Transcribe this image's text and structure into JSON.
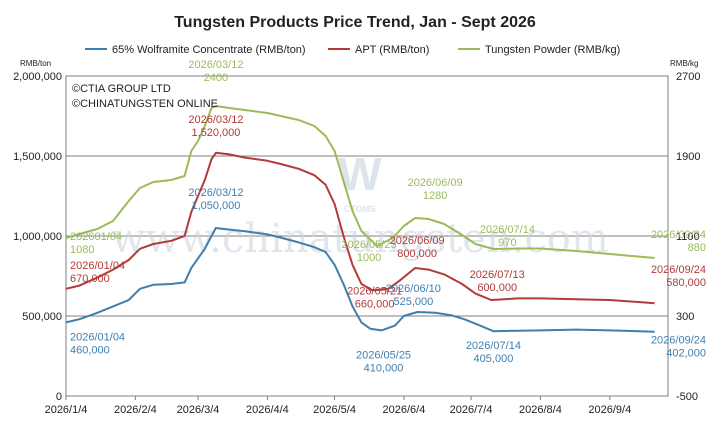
{
  "chart_data": {
    "type": "line",
    "title": "Tungsten Products Price Trend, Jan - Sept 2026",
    "y_left_unit": "RMB/ton",
    "y_right_unit": "RMB/kg",
    "y_left_range": [
      0,
      2000000
    ],
    "y_right_range": [
      -500,
      2700
    ],
    "y_left_ticks": [
      "0",
      "500,000",
      "1,000,000",
      "1,500,000",
      "2,000,000"
    ],
    "y_right_ticks": [
      "-500",
      "300",
      "1100",
      "1900",
      "2700"
    ],
    "x_range": [
      "2026-01-04",
      "2026-09-30"
    ],
    "x_ticks": [
      "2026/1/4",
      "2026/2/4",
      "2026/3/4",
      "2026/4/4",
      "2026/5/4",
      "2026/6/4",
      "2026/7/4",
      "2026/8/4",
      "2026/9/4"
    ],
    "x_tick_dates": [
      "2026-01-04",
      "2026-02-04",
      "2026-03-04",
      "2026-04-04",
      "2026-05-04",
      "2026-06-04",
      "2026-07-04",
      "2026-08-04",
      "2026-09-04"
    ],
    "grid": true,
    "legend_position": "top",
    "copyright": [
      "©CTIA GROUP LTD",
      "©CHINATUNGSTEN ONLINE"
    ],
    "watermark": "www.chinatungsten.com",
    "watermark_logo": "CTOMS",
    "series": [
      {
        "name": "65% Wolframite Concentrate (RMB/ton)",
        "axis": "left",
        "color": "#3f7fae",
        "points": [
          [
            "2026-01-04",
            460000
          ],
          [
            "2026-01-10",
            480000
          ],
          [
            "2026-01-18",
            520000
          ],
          [
            "2026-01-25",
            560000
          ],
          [
            "2026-02-01",
            600000
          ],
          [
            "2026-02-06",
            670000
          ],
          [
            "2026-02-12",
            695000
          ],
          [
            "2026-02-20",
            700000
          ],
          [
            "2026-02-26",
            710000
          ],
          [
            "2026-03-01",
            800000
          ],
          [
            "2026-03-04",
            860000
          ],
          [
            "2026-03-07",
            920000
          ],
          [
            "2026-03-10",
            1000000
          ],
          [
            "2026-03-12",
            1050000
          ],
          [
            "2026-03-18",
            1040000
          ],
          [
            "2026-03-25",
            1030000
          ],
          [
            "2026-04-04",
            1010000
          ],
          [
            "2026-04-10",
            990000
          ],
          [
            "2026-04-18",
            960000
          ],
          [
            "2026-04-25",
            930000
          ],
          [
            "2026-04-30",
            900000
          ],
          [
            "2026-05-04",
            820000
          ],
          [
            "2026-05-08",
            700000
          ],
          [
            "2026-05-12",
            560000
          ],
          [
            "2026-05-16",
            460000
          ],
          [
            "2026-05-20",
            420000
          ],
          [
            "2026-05-25",
            410000
          ],
          [
            "2026-05-31",
            440000
          ],
          [
            "2026-06-04",
            500000
          ],
          [
            "2026-06-10",
            525000
          ],
          [
            "2026-06-18",
            520000
          ],
          [
            "2026-06-25",
            505000
          ],
          [
            "2026-07-01",
            480000
          ],
          [
            "2026-07-08",
            440000
          ],
          [
            "2026-07-14",
            405000
          ],
          [
            "2026-07-25",
            408000
          ],
          [
            "2026-08-04",
            410000
          ],
          [
            "2026-08-20",
            415000
          ],
          [
            "2026-09-04",
            410000
          ],
          [
            "2026-09-24",
            402000
          ]
        ]
      },
      {
        "name": "APT (RMB/ton)",
        "axis": "left",
        "color": "#b23a37",
        "points": [
          [
            "2026-01-04",
            670000
          ],
          [
            "2026-01-10",
            690000
          ],
          [
            "2026-01-18",
            740000
          ],
          [
            "2026-01-25",
            790000
          ],
          [
            "2026-02-01",
            850000
          ],
          [
            "2026-02-06",
            920000
          ],
          [
            "2026-02-12",
            950000
          ],
          [
            "2026-02-20",
            970000
          ],
          [
            "2026-02-26",
            1000000
          ],
          [
            "2026-03-01",
            1150000
          ],
          [
            "2026-03-04",
            1250000
          ],
          [
            "2026-03-07",
            1350000
          ],
          [
            "2026-03-10",
            1480000
          ],
          [
            "2026-03-12",
            1520000
          ],
          [
            "2026-03-18",
            1510000
          ],
          [
            "2026-03-25",
            1490000
          ],
          [
            "2026-04-04",
            1470000
          ],
          [
            "2026-04-10",
            1450000
          ],
          [
            "2026-04-18",
            1420000
          ],
          [
            "2026-04-25",
            1380000
          ],
          [
            "2026-04-30",
            1320000
          ],
          [
            "2026-05-04",
            1200000
          ],
          [
            "2026-05-08",
            1000000
          ],
          [
            "2026-05-12",
            820000
          ],
          [
            "2026-05-16",
            700000
          ],
          [
            "2026-05-21",
            660000
          ],
          [
            "2026-05-28",
            670000
          ],
          [
            "2026-06-02",
            720000
          ],
          [
            "2026-06-09",
            800000
          ],
          [
            "2026-06-15",
            790000
          ],
          [
            "2026-06-22",
            760000
          ],
          [
            "2026-06-30",
            700000
          ],
          [
            "2026-07-06",
            640000
          ],
          [
            "2026-07-13",
            600000
          ],
          [
            "2026-07-25",
            610000
          ],
          [
            "2026-08-04",
            610000
          ],
          [
            "2026-08-20",
            605000
          ],
          [
            "2026-09-04",
            600000
          ],
          [
            "2026-09-24",
            580000
          ]
        ]
      },
      {
        "name": "Tungsten Powder (RMB/kg)",
        "axis": "right",
        "color": "#9bbb59",
        "points": [
          [
            "2026-01-04",
            1080
          ],
          [
            "2026-01-10",
            1120
          ],
          [
            "2026-01-18",
            1170
          ],
          [
            "2026-01-25",
            1250
          ],
          [
            "2026-02-01",
            1450
          ],
          [
            "2026-02-06",
            1580
          ],
          [
            "2026-02-12",
            1640
          ],
          [
            "2026-02-20",
            1660
          ],
          [
            "2026-02-26",
            1700
          ],
          [
            "2026-03-01",
            1950
          ],
          [
            "2026-03-04",
            2050
          ],
          [
            "2026-03-07",
            2200
          ],
          [
            "2026-03-10",
            2380
          ],
          [
            "2026-03-12",
            2400
          ],
          [
            "2026-03-18",
            2380
          ],
          [
            "2026-03-25",
            2360
          ],
          [
            "2026-04-04",
            2330
          ],
          [
            "2026-04-10",
            2300
          ],
          [
            "2026-04-18",
            2260
          ],
          [
            "2026-04-25",
            2200
          ],
          [
            "2026-04-30",
            2100
          ],
          [
            "2026-05-04",
            1950
          ],
          [
            "2026-05-08",
            1650
          ],
          [
            "2026-05-12",
            1350
          ],
          [
            "2026-05-16",
            1150
          ],
          [
            "2026-05-23",
            1000
          ],
          [
            "2026-05-30",
            1080
          ],
          [
            "2026-06-04",
            1200
          ],
          [
            "2026-06-09",
            1280
          ],
          [
            "2026-06-15",
            1270
          ],
          [
            "2026-06-22",
            1220
          ],
          [
            "2026-06-30",
            1110
          ],
          [
            "2026-07-06",
            1020
          ],
          [
            "2026-07-14",
            970
          ],
          [
            "2026-07-25",
            975
          ],
          [
            "2026-08-04",
            975
          ],
          [
            "2026-08-20",
            950
          ],
          [
            "2026-09-04",
            920
          ],
          [
            "2026-09-24",
            880
          ]
        ]
      }
    ],
    "annotations": [
      {
        "series": 2,
        "date": "2026-03-12",
        "lines": [
          "2026/03/12",
          "2400"
        ]
      },
      {
        "series": 1,
        "date": "2026-03-12",
        "lines": [
          "2026/03/12",
          "1,520,000"
        ]
      },
      {
        "series": 0,
        "date": "2026-03-12",
        "lines": [
          "2026/03/12",
          "1,050,000"
        ]
      },
      {
        "series": 2,
        "date": "2026-01-04",
        "lines": [
          "202601/04",
          "1080"
        ]
      },
      {
        "series": 1,
        "date": "2026-01-04",
        "lines": [
          "2026/01/04",
          "670,000"
        ]
      },
      {
        "series": 0,
        "date": "2026-01-04",
        "lines": [
          "2026/01/04",
          "460,000"
        ]
      },
      {
        "series": 2,
        "date": "2026-05-23",
        "lines": [
          "2026/05/23",
          "1000"
        ]
      },
      {
        "series": 1,
        "date": "2026-05-21",
        "lines": [
          "2026/05/21",
          "660,000"
        ]
      },
      {
        "series": 0,
        "date": "2026-05-25",
        "lines": [
          "2026/05/25",
          "410,000"
        ]
      },
      {
        "series": 2,
        "date": "2026-06-09",
        "lines": [
          "2026/06/09",
          "1280"
        ]
      },
      {
        "series": 1,
        "date": "2026-06-09",
        "lines": [
          "2026/06/09",
          "800,000"
        ]
      },
      {
        "series": 0,
        "date": "2026-06-10",
        "lines": [
          "2026/06/10",
          "525,000"
        ]
      },
      {
        "series": 2,
        "date": "2026-07-14",
        "lines": [
          "2026/07/14",
          "970"
        ]
      },
      {
        "series": 1,
        "date": "2026-07-13",
        "lines": [
          "2026/07/13",
          "600,000"
        ]
      },
      {
        "series": 0,
        "date": "2026-07-14",
        "lines": [
          "2026/07/14",
          "405,000"
        ]
      },
      {
        "series": 2,
        "date": "2026-09-24",
        "lines": [
          "2026/09/24",
          "880"
        ]
      },
      {
        "series": 1,
        "date": "2026-09-24",
        "lines": [
          "2026/09/24",
          "580,000"
        ]
      },
      {
        "series": 0,
        "date": "2026-09-24",
        "lines": [
          "2026/09/24",
          "402,000"
        ]
      }
    ]
  }
}
